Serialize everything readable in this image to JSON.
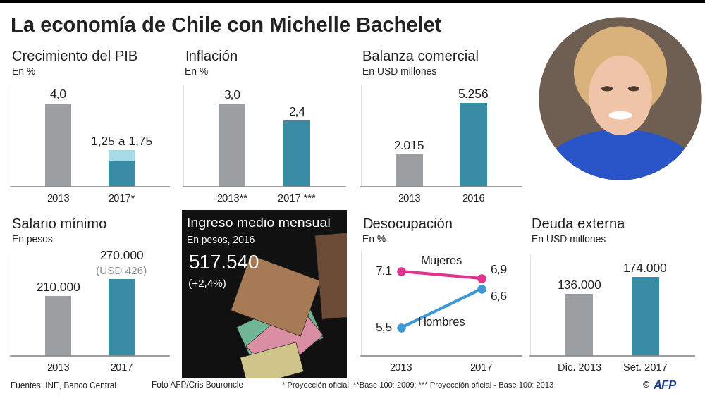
{
  "title": "La economía de Chile con Michelle Bachelet",
  "chart_data": [
    {
      "type": "bar",
      "title": "Crecimiento del PIB",
      "subtitle": "En %",
      "categories": [
        "2013",
        "2017*"
      ],
      "values": [
        4.0,
        1.25
      ],
      "upper": [
        null,
        1.75
      ],
      "value_labels": [
        "4,0",
        "1,25 a 1,75"
      ],
      "colors": [
        "#9b9fa2",
        "#3a8ba6"
      ],
      "ylim": [
        0,
        4.9
      ],
      "yticks": [],
      "data_labels": true,
      "tick_labels": "x"
    },
    {
      "type": "bar",
      "title": "Inflación",
      "subtitle": "En %",
      "categories": [
        "2013**",
        "2017 ***"
      ],
      "values": [
        3.0,
        2.4
      ],
      "value_labels": [
        "3,0",
        "2,4"
      ],
      "colors": [
        "#9b9fa2",
        "#3a8ba6"
      ],
      "ylim": [
        0,
        3.7
      ],
      "yticks": [],
      "data_labels": true,
      "tick_labels": "x"
    },
    {
      "type": "bar",
      "title": "Balanza comercial",
      "subtitle": "En USD millones",
      "categories": [
        "2013",
        "2016"
      ],
      "values": [
        2015,
        5256
      ],
      "value_labels": [
        "2.015",
        "5.256"
      ],
      "colors": [
        "#9b9fa2",
        "#3a8ba6"
      ],
      "ylim": [
        0,
        6400
      ],
      "yticks": [],
      "data_labels": true,
      "tick_labels": "x"
    },
    {
      "type": "bar",
      "title": "Salario mínimo",
      "subtitle": "En pesos",
      "categories": [
        "2013",
        "2017"
      ],
      "values": [
        210000,
        270000
      ],
      "value_labels": [
        "210.000",
        "270.000"
      ],
      "value_notes": [
        null,
        "(USD 426)"
      ],
      "colors": [
        "#9b9fa2",
        "#3a8ba6"
      ],
      "ylim": [
        0,
        360000
      ],
      "yticks": [],
      "data_labels": true,
      "tick_labels": "x"
    },
    {
      "type": "line",
      "title": "Desocupación",
      "subtitle": "En %",
      "categories": [
        "2013",
        "2017"
      ],
      "series": [
        {
          "name": "Mujeres",
          "color": "#e2338e",
          "values": [
            7.1,
            6.9
          ],
          "value_labels": [
            "7,1",
            "6,9"
          ],
          "marker": "circle"
        },
        {
          "name": "Hombres",
          "color": "#3d98d5",
          "values": [
            5.5,
            6.6
          ],
          "value_labels": [
            "5,5",
            "6,6"
          ],
          "marker": "circle"
        }
      ],
      "ylim": [
        4.7,
        7.7
      ],
      "yticks": [],
      "data_labels": true,
      "tick_labels": "x"
    },
    {
      "type": "bar",
      "title": "Deuda externa",
      "subtitle": "En USD millones",
      "categories": [
        "Dic. 2013",
        "Set. 2017"
      ],
      "values": [
        136000,
        174000
      ],
      "value_labels": [
        "136.000",
        "174.000"
      ],
      "colors": [
        "#9b9fa2",
        "#3a8ba6"
      ],
      "ylim": [
        0,
        225000
      ],
      "yticks": [],
      "data_labels": true,
      "tick_labels": "x"
    }
  ],
  "panel": {
    "title": "Ingreso medio mensual",
    "subtitle": "En pesos, 2016",
    "value": "517.540",
    "change": "(+2,4%)"
  },
  "footer": {
    "sources": "Fuentes: INE, Banco Central",
    "photo_credit": "Foto AFP/Cris Bouroncle",
    "notes": "* Proyección oficial; **Base 100: 2009; *** Proyección oficial - Base 100: 2013",
    "copyright": "©",
    "logo": "AFP"
  }
}
